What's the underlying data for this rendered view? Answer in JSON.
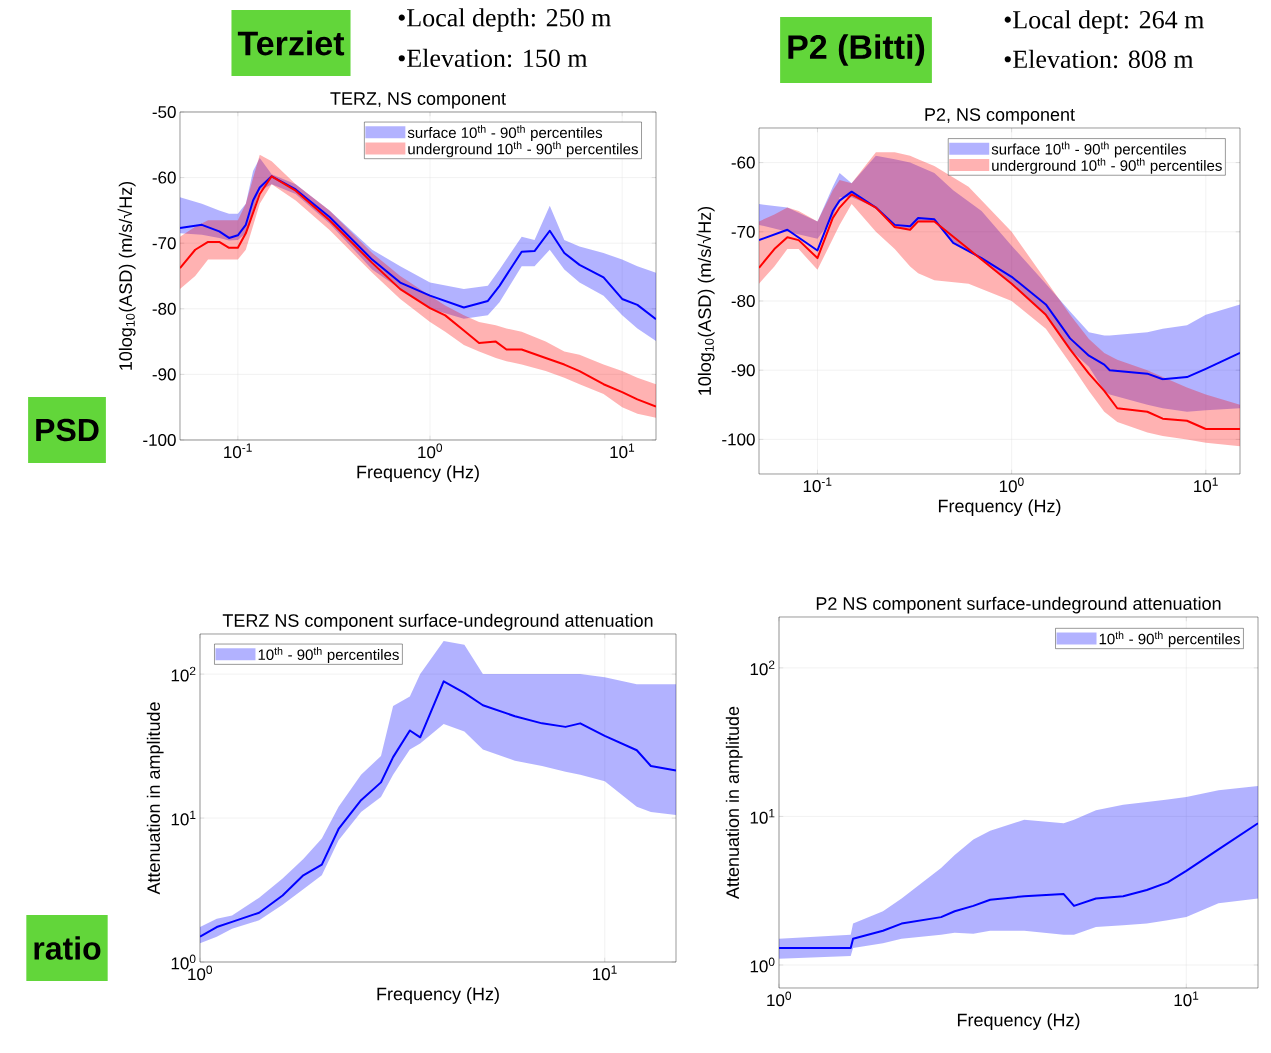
{
  "chart_data": [
    {
      "type": "line",
      "title": "TERZ, NS component",
      "xlabel": "Frequency (Hz)",
      "ylabel": "10log$_{10}$(ASD) (m/s/√Hz)",
      "log": "x",
      "grid": true,
      "legend": "top right",
      "xlim": [
        0.05,
        15
      ],
      "ylim": [
        -100,
        -50
      ],
      "xticks": [
        {
          "value": 0.1,
          "label": "10$^{-1}$"
        },
        {
          "value": 1,
          "label": "10$^{0}$"
        },
        {
          "value": 10,
          "label": "10$^{1}$"
        }
      ],
      "yticks": [
        -100,
        -90,
        -80,
        -70,
        -60,
        -50
      ],
      "annotations": [
        "Terziet",
        "•Local depth: 250 m",
        "•Elevation: 150 m",
        "PSD"
      ],
      "series": [
        {
          "name": "surface 10$^{th}$ - 90$^{th}$ percentiles",
          "color": "#0000ff",
          "x": [
            0.05,
            0.065,
            0.08,
            0.09,
            0.1,
            0.11,
            0.12,
            0.13,
            0.15,
            0.2,
            0.3,
            0.5,
            0.7,
            1.0,
            1.5,
            2.0,
            2.3,
            3.0,
            3.5,
            4.2,
            5.0,
            6.0,
            8.0,
            10,
            12,
            15
          ],
          "values": [
            -67.7,
            -67.2,
            -68.2,
            -69.2,
            -68.8,
            -67.2,
            -63.5,
            -61.5,
            -59.8,
            -61.8,
            -66,
            -72.5,
            -76,
            -78,
            -79.8,
            -78.8,
            -76.5,
            -71.3,
            -71.2,
            -68.1,
            -71.5,
            -73.3,
            -75.2,
            -78.5,
            -79.4,
            -81.6
          ],
          "lower": [
            -68.5,
            -68.7,
            -69.2,
            -69.6,
            -69.5,
            -68.5,
            -65,
            -62,
            -61,
            -62.5,
            -67,
            -74,
            -77,
            -80,
            -81.5,
            -81,
            -79,
            -73.5,
            -73.5,
            -71,
            -74,
            -76,
            -78,
            -81,
            -83,
            -84.9
          ],
          "upper": [
            -63,
            -64,
            -65,
            -65.5,
            -65.5,
            -64,
            -59,
            -57,
            -59.5,
            -61,
            -65,
            -71,
            -73.5,
            -76,
            -77,
            -76.5,
            -74,
            -69,
            -69.5,
            -64.3,
            -69.5,
            -70.5,
            -71.5,
            -72.5,
            -73.5,
            -74.5
          ]
        },
        {
          "name": "underground 10$^{th}$ - 90$^{th}$ percentiles",
          "color": "#ff0000",
          "x": [
            0.05,
            0.06,
            0.07,
            0.08,
            0.09,
            0.1,
            0.11,
            0.13,
            0.15,
            0.2,
            0.3,
            0.5,
            0.7,
            1.0,
            1.2,
            1.5,
            1.8,
            2.2,
            2.5,
            3.0,
            4.0,
            5.0,
            6.0,
            8.0,
            10,
            12,
            15
          ],
          "values": [
            -73.8,
            -71,
            -69.8,
            -69.8,
            -70.7,
            -70.7,
            -68.5,
            -62.5,
            -59.8,
            -62,
            -66.5,
            -73,
            -77,
            -79.9,
            -81,
            -83.3,
            -85.2,
            -85,
            -86.2,
            -86.2,
            -87.5,
            -88.5,
            -89.5,
            -91.5,
            -92.7,
            -93.8,
            -94.9
          ],
          "lower": [
            -77,
            -75,
            -72.5,
            -72.5,
            -72.5,
            -72.5,
            -71,
            -64,
            -61,
            -63.5,
            -68,
            -74.5,
            -78.5,
            -82,
            -83.5,
            -85.5,
            -86.5,
            -87.5,
            -88,
            -88.5,
            -89.5,
            -90.5,
            -91.5,
            -93,
            -95,
            -96,
            -96.6
          ],
          "upper": [
            -69,
            -67.5,
            -66.5,
            -66.5,
            -66.5,
            -66.5,
            -64,
            -56.5,
            -57.5,
            -61,
            -65,
            -71.5,
            -75,
            -78,
            -79.5,
            -81,
            -82,
            -82.5,
            -83,
            -83.5,
            -85,
            -86.5,
            -87,
            -88.5,
            -89.5,
            -90.5,
            -91.5
          ]
        }
      ]
    },
    {
      "type": "line",
      "title": "P2, NS component",
      "xlabel": "Frequency (Hz)",
      "ylabel": "10log$_{10}$(ASD) (m/s/√Hz)",
      "log": "x",
      "grid": true,
      "legend": "top right",
      "xlim": [
        0.05,
        15
      ],
      "ylim": [
        -105,
        -55
      ],
      "xticks": [
        {
          "value": 0.1,
          "label": "10$^{-1}$"
        },
        {
          "value": 1,
          "label": "10$^{0}$"
        },
        {
          "value": 10,
          "label": "10$^{1}$"
        }
      ],
      "yticks": [
        -100,
        -90,
        -80,
        -70,
        -60
      ],
      "annotations": [
        "P2 (Bitti)",
        "•Local dept: 264 m",
        "•Elevation: 808 m"
      ],
      "series": [
        {
          "name": "surface 10$^{th}$ - 90$^{th}$ percentiles",
          "color": "#0000ff",
          "x": [
            0.05,
            0.07,
            0.1,
            0.12,
            0.13,
            0.15,
            0.2,
            0.25,
            0.3,
            0.33,
            0.4,
            0.5,
            0.7,
            1.0,
            1.5,
            2.0,
            2.5,
            3.0,
            3.2,
            5.0,
            6.0,
            8.0,
            10,
            15
          ],
          "values": [
            -71.2,
            -69.7,
            -72.7,
            -67,
            -65.5,
            -64.2,
            -66.5,
            -69,
            -69.2,
            -68,
            -68.2,
            -71.6,
            -73.8,
            -76.5,
            -80.5,
            -85.4,
            -87.9,
            -89.2,
            -90,
            -90.5,
            -91.3,
            -91,
            -89.8,
            -87.5
          ],
          "lower": [
            -69,
            -70,
            -71,
            -68,
            -65,
            -65,
            -66.5,
            -69.5,
            -69.5,
            -68.5,
            -68.5,
            -71.5,
            -74,
            -77.5,
            -82,
            -87,
            -89.5,
            -93,
            -93.5,
            -95,
            -95.5,
            -96,
            -95.8,
            -95.5
          ],
          "upper": [
            -66,
            -66.5,
            -68.5,
            -63.5,
            -61.5,
            -63,
            -59,
            -59.5,
            -60,
            -60.5,
            -61.5,
            -64,
            -67,
            -72,
            -77.5,
            -81.5,
            -84.5,
            -85,
            -85,
            -84.5,
            -84,
            -83.5,
            -82,
            -80.5
          ]
        },
        {
          "name": "underground 10$^{th}$ - 90$^{th}$ percentiles",
          "color": "#ff0000",
          "x": [
            0.05,
            0.06,
            0.07,
            0.08,
            0.1,
            0.12,
            0.13,
            0.15,
            0.2,
            0.25,
            0.3,
            0.33,
            0.4,
            0.6,
            1.0,
            1.5,
            2.0,
            2.5,
            3.0,
            3.5,
            5.0,
            6.0,
            8.0,
            10,
            15
          ],
          "values": [
            -75.2,
            -72.5,
            -70.8,
            -71.2,
            -73.8,
            -68,
            -66.5,
            -64.6,
            -66.5,
            -69.3,
            -69.7,
            -68.5,
            -68.5,
            -72.5,
            -77.5,
            -82,
            -87,
            -90.5,
            -93,
            -95.5,
            -96,
            -97,
            -97.3,
            -98.5,
            -98.5
          ],
          "lower": [
            -77.5,
            -75,
            -72.5,
            -72.5,
            -75.5,
            -71,
            -69,
            -66,
            -70,
            -72.5,
            -75,
            -76,
            -77,
            -77.5,
            -80,
            -84,
            -89,
            -93,
            -96,
            -97.5,
            -99,
            -99.5,
            -100,
            -100.5,
            -101
          ],
          "upper": [
            -68.5,
            -67.5,
            -66.5,
            -67,
            -68.5,
            -64,
            -62.5,
            -63,
            -58.5,
            -58.5,
            -59,
            -59.5,
            -60.5,
            -63.5,
            -70,
            -77,
            -82,
            -85.5,
            -87.5,
            -88.5,
            -90,
            -91,
            -92.5,
            -93.5,
            -95
          ]
        }
      ]
    },
    {
      "type": "line",
      "title": "TERZ NS component surface-undeground attenuation",
      "xlabel": "Frequency (Hz)",
      "ylabel": "Attenuation in amplitude",
      "log": "xy",
      "grid": true,
      "legend": "top left",
      "xlim": [
        1,
        15
      ],
      "ylim": [
        1,
        190
      ],
      "xticks": [
        {
          "value": 1,
          "label": "10$^{0}$"
        },
        {
          "value": 10,
          "label": "10$^{1}$"
        }
      ],
      "yticks": [
        {
          "value": 1,
          "label": "10$^{0}$"
        },
        {
          "value": 10,
          "label": "10$^{1}$"
        },
        {
          "value": 100,
          "label": "10$^{2}$"
        }
      ],
      "annotations": [
        "ratio"
      ],
      "series": [
        {
          "name": "10$^{th}$ - 90$^{th}$ percentiles",
          "color": "#0000ff",
          "x": [
            1,
            1.1,
            1.2,
            1.4,
            1.6,
            1.8,
            2.0,
            2.2,
            2.5,
            2.8,
            3.0,
            3.3,
            3.5,
            4.0,
            4.5,
            5.0,
            6,
            7,
            8,
            8.7,
            10,
            12,
            13,
            15
          ],
          "values": [
            1.5,
            1.75,
            1.9,
            2.2,
            2.9,
            4.0,
            4.75,
            8.4,
            13.3,
            17.7,
            26.5,
            40.6,
            36.4,
            89,
            74,
            60.8,
            51,
            45.5,
            43,
            45.5,
            37.2,
            29.6,
            23,
            21.4
          ],
          "lower": [
            1.35,
            1.5,
            1.7,
            1.95,
            2.5,
            3.2,
            4.0,
            7,
            11,
            14,
            20,
            30,
            33,
            45,
            40,
            30,
            25,
            23,
            21,
            20,
            18,
            12,
            11,
            10.5
          ],
          "upper": [
            1.75,
            2.0,
            2.1,
            2.8,
            3.8,
            5.2,
            7.2,
            12,
            20,
            27,
            60,
            70,
            100,
            170,
            160,
            100,
            100,
            100,
            100,
            100,
            95,
            85,
            85,
            85
          ]
        }
      ]
    },
    {
      "type": "line",
      "title": "P2 NS component surface-undeground attenuation",
      "xlabel": "Frequency (Hz)",
      "ylabel": "Attenuation in amplitude",
      "log": "xy",
      "grid": true,
      "legend": "top right",
      "xlim": [
        1,
        15
      ],
      "ylim": [
        0.7,
        220
      ],
      "xticks": [
        {
          "value": 1,
          "label": "10$^{0}$"
        },
        {
          "value": 10,
          "label": "10$^{1}$"
        }
      ],
      "yticks": [
        {
          "value": 1,
          "label": "10$^{0}$"
        },
        {
          "value": 10,
          "label": "10$^{1}$"
        },
        {
          "value": 100,
          "label": "10$^{2}$"
        }
      ],
      "series": [
        {
          "name": "10$^{th}$ - 90$^{th}$ percentiles",
          "color": "#0000ff",
          "x": [
            1,
            1.5,
            1.52,
            1.8,
            2.0,
            2.5,
            2.7,
            3.0,
            3.3,
            4,
            5,
            5.3,
            6,
            7,
            8,
            9,
            10,
            12,
            15
          ],
          "values": [
            1.3,
            1.3,
            1.5,
            1.7,
            1.9,
            2.1,
            2.3,
            2.5,
            2.75,
            2.9,
            3.0,
            2.5,
            2.8,
            2.9,
            3.2,
            3.6,
            4.3,
            6.0,
            9.0
          ],
          "lower": [
            1.1,
            1.15,
            1.3,
            1.4,
            1.5,
            1.6,
            1.65,
            1.62,
            1.7,
            1.7,
            1.6,
            1.6,
            1.8,
            1.85,
            1.9,
            2.0,
            2.1,
            2.6,
            2.8
          ],
          "upper": [
            1.5,
            1.6,
            1.9,
            2.3,
            2.8,
            4.5,
            5.5,
            7.0,
            8.0,
            9.5,
            9.0,
            9.5,
            11,
            12,
            12.5,
            13,
            13.5,
            15,
            16
          ]
        }
      ]
    }
  ]
}
